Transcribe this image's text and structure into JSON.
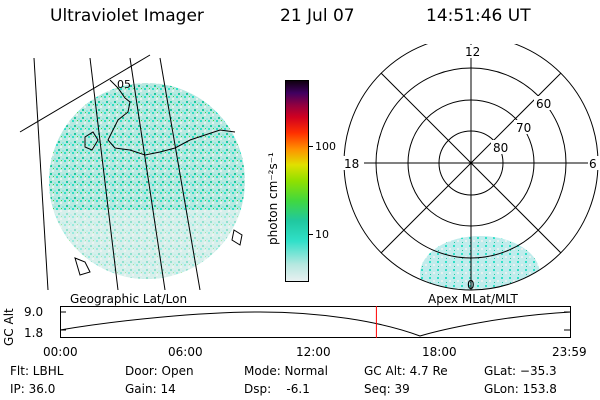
{
  "header": {
    "title": "Ultraviolet Imager",
    "date": "21 Jul 07",
    "time": "14:51:46 UT"
  },
  "left_panel": {
    "caption": "Geographic Lat/Lon",
    "marker": "05"
  },
  "colorbar": {
    "label": "photon cm⁻²s⁻¹",
    "ticks": [
      "100",
      "10"
    ],
    "colors": [
      "#e8f0f0",
      "#b8e8e0",
      "#30e0c8",
      "#20c8a0",
      "#40d840",
      "#90e000",
      "#e0e000",
      "#ff9000",
      "#ff3000",
      "#d00020",
      "#900040",
      "#400060",
      "#100010"
    ]
  },
  "right_panel": {
    "caption": "Apex MLat/MLT",
    "mlt_labels": {
      "top": "12",
      "left": "18",
      "right": "6",
      "bottom": "0"
    },
    "lat_labels": [
      "60",
      "70",
      "80"
    ]
  },
  "timeline": {
    "ylabel": "GC Alt",
    "yticks": [
      "9.0",
      "1.8"
    ],
    "xticks": [
      "00:00",
      "06:00",
      "12:00",
      "18:00",
      "23:59"
    ],
    "current_time_hours": 14.86
  },
  "info": {
    "flt": "Flt: LBHL",
    "ip": "IP: 36.0",
    "door": "Door: Open",
    "gain": "Gain: 14",
    "mode": "Mode: Normal",
    "dsp": "Dsp:    -6.1",
    "gcalt": "GC Alt: 4.7 Re",
    "seq": "Seq: 39",
    "glat": "GLat: −35.3",
    "glon": "GLon: 153.8"
  }
}
